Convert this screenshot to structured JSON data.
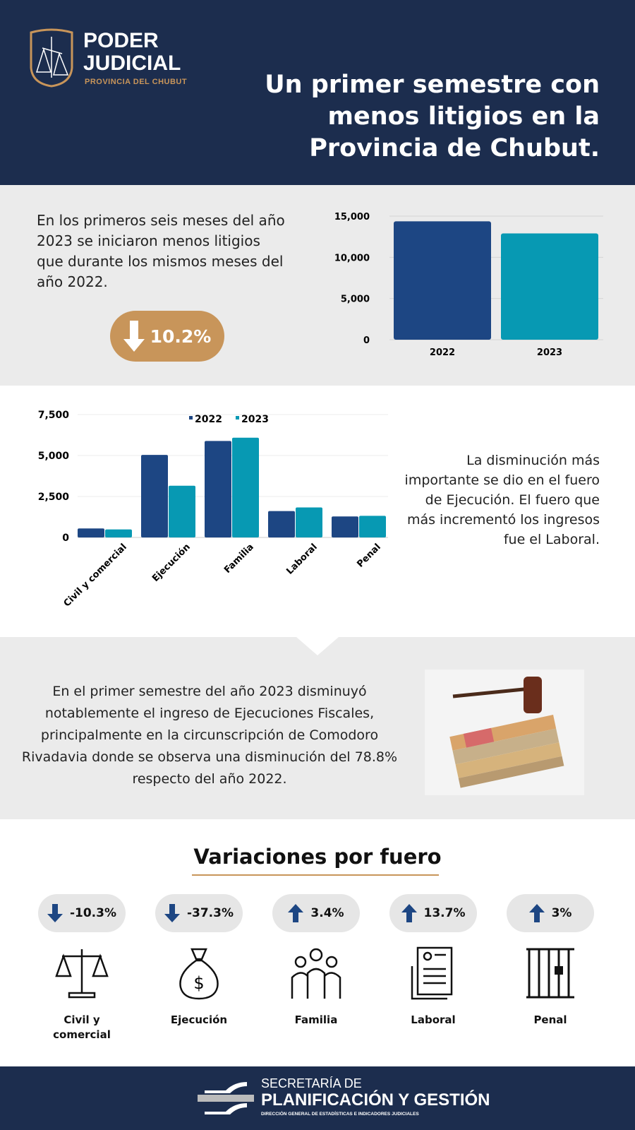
{
  "header": {
    "logo_line1": "PODER",
    "logo_line2": "JUDICIAL",
    "logo_line3": "PROVINCIA DEL CHUBUT",
    "title": "Un primer semestre con menos litigios en la Provincia de Chubut."
  },
  "section1": {
    "text": "En los primeros seis meses del año 2023 se iniciaron menos litigios que durante los mismos meses del año 2022.",
    "badge": "10.2%",
    "badge_icon": "arrow-down-icon"
  },
  "section2": {
    "text": "La disminución más importante se dio en el fuero de Ejecución. El fuero que más incrementó los ingresos fue el Laboral."
  },
  "section3": {
    "text": "En el primer semestre del año 2023 disminuyó notablemente el ingreso de Ejecuciones Fiscales, principalmente en la circunscripción de Comodoro Rivadavia donde se observa una disminución del 78.8% respecto del año 2022."
  },
  "variaciones": {
    "title": "Variaciones por fuero",
    "items": [
      {
        "label": "Civil y comercial",
        "value": "-10.3%",
        "direction": "down",
        "icon": "scales-icon"
      },
      {
        "label": "Ejecución",
        "value": "-37.3%",
        "direction": "down",
        "icon": "money-bag-icon"
      },
      {
        "label": "Familia",
        "value": "3.4%",
        "direction": "up",
        "icon": "family-icon"
      },
      {
        "label": "Laboral",
        "value": "13.7%",
        "direction": "up",
        "icon": "document-icon"
      },
      {
        "label": "Penal",
        "value": "3%",
        "direction": "up",
        "icon": "jail-icon"
      }
    ]
  },
  "footer": {
    "line1": "SECRETARÍA DE",
    "line2": "PLANIFICACIÓN Y GESTIÓN",
    "line3": "DIRECCIÓN GENERAL DE ESTADÍSTICAS E INDICADORES JUDICIALES"
  },
  "colors": {
    "navy": "#1c2d4e",
    "series_2022": "#1d4683",
    "series_2023": "#0799b3",
    "gold": "#c8955a"
  },
  "chart_data": [
    {
      "type": "bar",
      "categories": [
        "2022",
        "2023"
      ],
      "values": [
        14370,
        12900
      ],
      "ylim": [
        0,
        15000
      ],
      "yticks": [
        "0",
        "5,000",
        "10,000",
        "15,000"
      ],
      "grid": true
    },
    {
      "type": "bar",
      "categories": [
        "Civil y comercial",
        "Ejecución",
        "Familia",
        "Laboral",
        "Penal"
      ],
      "series": [
        {
          "name": "2022",
          "values": [
            548,
            5040,
            5890,
            1610,
            1280
          ]
        },
        {
          "name": "2023",
          "values": [
            492,
            3160,
            6090,
            1830,
            1318
          ]
        }
      ],
      "ylim": [
        0,
        7500
      ],
      "yticks": [
        "0",
        "2,500",
        "5,000",
        "7,500"
      ],
      "legend": "top",
      "grid": true
    }
  ]
}
